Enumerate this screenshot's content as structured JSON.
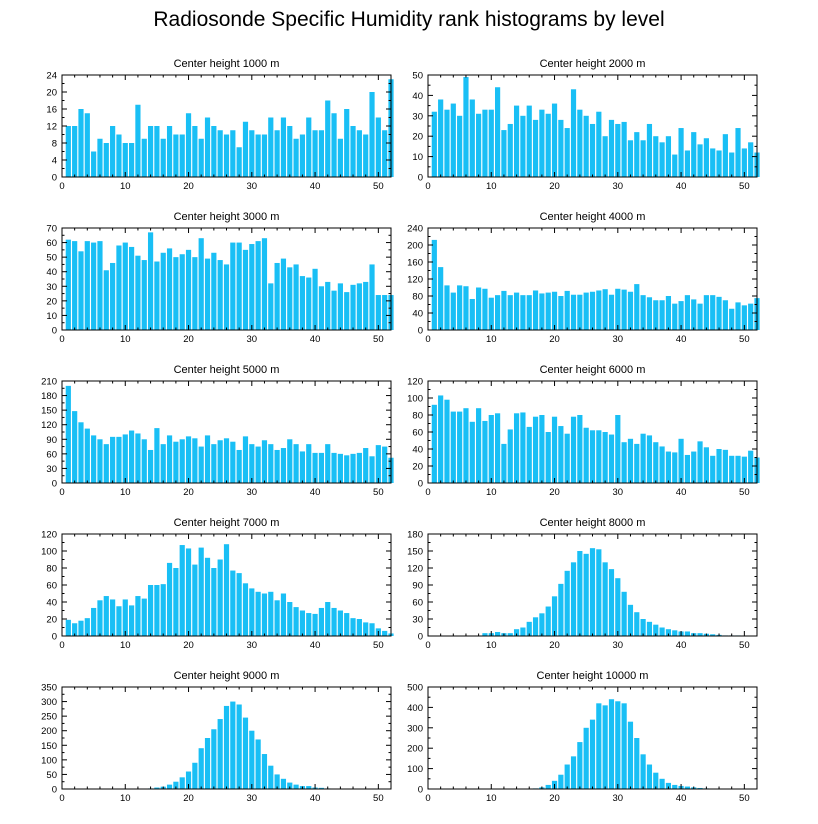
{
  "page_title": "Radiosonde Specific Humidity rank histograms by level",
  "bar_color": "#19bff5",
  "chart_data": [
    {
      "type": "bar",
      "title": "Center height 1000 m",
      "xlim": [
        0,
        52
      ],
      "xticks": [
        0,
        10,
        20,
        30,
        40,
        50
      ],
      "ylim": [
        0,
        24
      ],
      "yticks": [
        0,
        4,
        8,
        12,
        16,
        20,
        24
      ],
      "values": [
        12,
        12,
        16,
        15,
        6,
        9,
        8,
        12,
        10,
        8,
        8,
        17,
        9,
        12,
        12,
        9,
        12,
        10,
        10,
        15,
        12,
        9,
        14,
        12,
        11,
        10,
        11,
        7,
        13,
        11,
        10,
        10,
        14,
        11,
        14,
        12,
        9,
        10,
        14,
        11,
        11,
        18,
        15,
        9,
        16,
        12,
        11,
        10,
        20,
        14,
        11,
        23
      ]
    },
    {
      "type": "bar",
      "title": "Center height 2000 m",
      "xlim": [
        0,
        52
      ],
      "xticks": [
        0,
        10,
        20,
        30,
        40,
        50
      ],
      "ylim": [
        0,
        50
      ],
      "yticks": [
        0,
        10,
        20,
        30,
        40,
        50
      ],
      "values": [
        32,
        38,
        33,
        36,
        30,
        49,
        38,
        31,
        33,
        33,
        44,
        23,
        26,
        35,
        30,
        35,
        28,
        33,
        31,
        36,
        28,
        24,
        43,
        33,
        30,
        26,
        32,
        20,
        28,
        26,
        27,
        18,
        22,
        18,
        26,
        20,
        17,
        20,
        11,
        24,
        13,
        22,
        16,
        19,
        14,
        13,
        21,
        12,
        24,
        14,
        17,
        12
      ]
    },
    {
      "type": "bar",
      "title": "Center height 3000 m",
      "xlim": [
        0,
        52
      ],
      "xticks": [
        0,
        10,
        20,
        30,
        40,
        50
      ],
      "ylim": [
        0,
        70
      ],
      "yticks": [
        0,
        10,
        20,
        30,
        40,
        50,
        60,
        70
      ],
      "values": [
        62,
        61,
        54,
        61,
        60,
        61,
        41,
        46,
        58,
        60,
        57,
        51,
        48,
        67,
        47,
        53,
        56,
        50,
        52,
        55,
        50,
        63,
        49,
        53,
        48,
        45,
        60,
        60,
        55,
        59,
        61,
        63,
        32,
        46,
        49,
        43,
        45,
        37,
        36,
        42,
        30,
        33,
        27,
        32,
        26,
        31,
        32,
        33,
        45,
        24,
        24,
        24
      ]
    },
    {
      "type": "bar",
      "title": "Center height 4000 m",
      "xlim": [
        0,
        52
      ],
      "xticks": [
        0,
        10,
        20,
        30,
        40,
        50
      ],
      "ylim": [
        0,
        240
      ],
      "yticks": [
        0,
        40,
        80,
        120,
        160,
        200,
        240
      ],
      "values": [
        212,
        148,
        105,
        88,
        105,
        103,
        73,
        100,
        97,
        76,
        82,
        92,
        82,
        88,
        82,
        82,
        93,
        86,
        88,
        90,
        80,
        92,
        83,
        83,
        88,
        90,
        93,
        96,
        83,
        97,
        95,
        90,
        108,
        82,
        77,
        70,
        70,
        80,
        62,
        68,
        82,
        72,
        62,
        82,
        82,
        78,
        70,
        50,
        65,
        58,
        62,
        75
      ]
    },
    {
      "type": "bar",
      "title": "Center height 5000 m",
      "xlim": [
        0,
        52
      ],
      "xticks": [
        0,
        10,
        20,
        30,
        40,
        50
      ],
      "ylim": [
        0,
        210
      ],
      "yticks": [
        0,
        30,
        60,
        90,
        120,
        150,
        180,
        210
      ],
      "values": [
        200,
        148,
        125,
        112,
        98,
        90,
        80,
        95,
        95,
        100,
        108,
        102,
        90,
        68,
        113,
        80,
        98,
        85,
        90,
        96,
        92,
        75,
        98,
        80,
        88,
        92,
        85,
        68,
        96,
        80,
        75,
        88,
        80,
        68,
        72,
        90,
        80,
        65,
        80,
        62,
        62,
        80,
        62,
        60,
        57,
        60,
        62,
        72,
        55,
        78,
        75,
        52
      ]
    },
    {
      "type": "bar",
      "title": "Center height 6000 m",
      "xlim": [
        0,
        52
      ],
      "xticks": [
        0,
        10,
        20,
        30,
        40,
        50
      ],
      "ylim": [
        0,
        120
      ],
      "yticks": [
        0,
        20,
        40,
        60,
        80,
        100,
        120
      ],
      "values": [
        92,
        103,
        98,
        84,
        84,
        88,
        72,
        88,
        73,
        80,
        82,
        46,
        63,
        82,
        83,
        66,
        78,
        80,
        60,
        78,
        67,
        58,
        78,
        80,
        65,
        62,
        62,
        60,
        57,
        80,
        48,
        52,
        46,
        58,
        56,
        48,
        43,
        37,
        36,
        52,
        33,
        37,
        49,
        42,
        32,
        40,
        39,
        32,
        32,
        31,
        38,
        30
      ]
    },
    {
      "type": "bar",
      "title": "Center height 7000 m",
      "xlim": [
        0,
        52
      ],
      "xticks": [
        0,
        10,
        20,
        30,
        40,
        50
      ],
      "ylim": [
        0,
        120
      ],
      "yticks": [
        0,
        20,
        40,
        60,
        80,
        100,
        120
      ],
      "values": [
        19,
        15,
        18,
        21,
        33,
        42,
        47,
        43,
        35,
        43,
        36,
        47,
        44,
        60,
        60,
        61,
        86,
        80,
        107,
        103,
        84,
        104,
        92,
        80,
        90,
        108,
        77,
        74,
        62,
        56,
        52,
        50,
        52,
        42,
        50,
        40,
        34,
        30,
        27,
        26,
        33,
        40,
        33,
        30,
        27,
        21,
        20,
        16,
        15,
        9,
        6,
        3
      ]
    },
    {
      "type": "bar",
      "title": "Center height 8000 m",
      "xlim": [
        0,
        52
      ],
      "xticks": [
        0,
        10,
        20,
        30,
        40,
        50
      ],
      "ylim": [
        0,
        180
      ],
      "yticks": [
        0,
        30,
        60,
        90,
        120,
        150,
        180
      ],
      "values": [
        0,
        0,
        0,
        0,
        0,
        0,
        0,
        0,
        5,
        5,
        7,
        5,
        5,
        12,
        15,
        25,
        33,
        40,
        52,
        70,
        92,
        115,
        130,
        150,
        145,
        155,
        153,
        130,
        118,
        102,
        78,
        55,
        42,
        30,
        25,
        20,
        15,
        12,
        10,
        8,
        8,
        5,
        5,
        4,
        3,
        2,
        1,
        1,
        1,
        0,
        0,
        0
      ]
    },
    {
      "type": "bar",
      "title": "Center height 9000 m",
      "xlim": [
        0,
        52
      ],
      "xticks": [
        0,
        10,
        20,
        30,
        40,
        50
      ],
      "ylim": [
        0,
        350
      ],
      "yticks": [
        0,
        50,
        100,
        150,
        200,
        250,
        300,
        350
      ],
      "values": [
        0,
        0,
        0,
        0,
        0,
        0,
        0,
        0,
        0,
        0,
        0,
        0,
        0,
        2,
        5,
        8,
        15,
        25,
        40,
        60,
        90,
        140,
        175,
        205,
        240,
        285,
        300,
        290,
        245,
        200,
        170,
        120,
        80,
        50,
        35,
        22,
        15,
        10,
        10,
        5,
        4,
        2,
        1,
        1,
        0,
        0,
        0,
        0,
        0,
        0,
        0,
        0
      ]
    },
    {
      "type": "bar",
      "title": "Center height 10000 m",
      "xlim": [
        0,
        52
      ],
      "xticks": [
        0,
        10,
        20,
        30,
        40,
        50
      ],
      "ylim": [
        0,
        500
      ],
      "yticks": [
        0,
        100,
        200,
        300,
        400,
        500
      ],
      "values": [
        0,
        0,
        0,
        0,
        0,
        0,
        0,
        0,
        0,
        0,
        0,
        0,
        0,
        0,
        0,
        1,
        3,
        8,
        20,
        40,
        70,
        120,
        160,
        230,
        300,
        340,
        420,
        410,
        440,
        430,
        420,
        330,
        250,
        170,
        120,
        80,
        50,
        30,
        20,
        15,
        12,
        8,
        5,
        3,
        2,
        1,
        0,
        0,
        0,
        0,
        0,
        0
      ]
    }
  ]
}
